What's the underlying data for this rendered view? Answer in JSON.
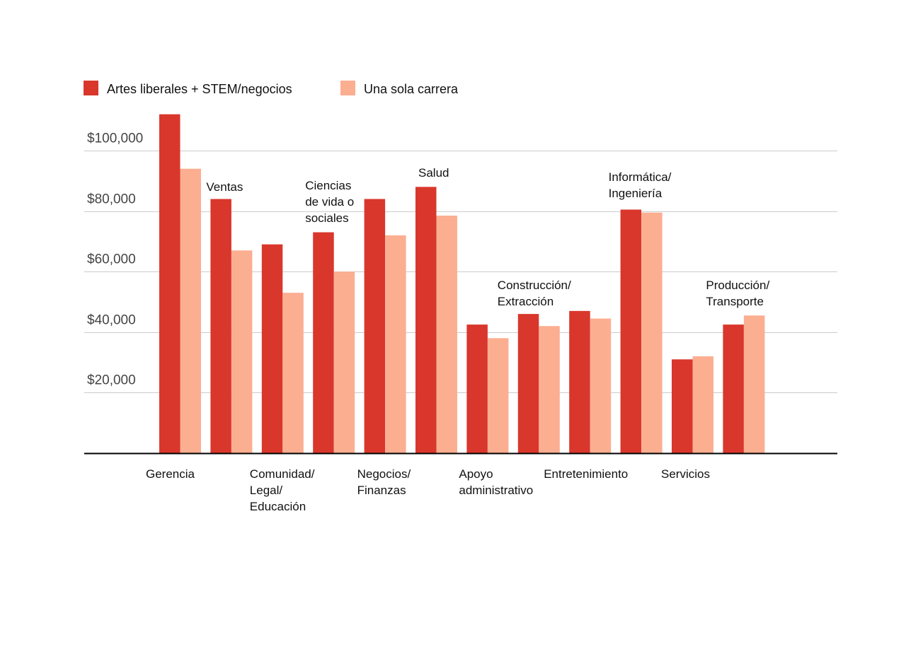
{
  "chart_data": {
    "type": "bar",
    "title": "",
    "xlabel": "",
    "ylabel": "",
    "ylim": [
      0,
      112000
    ],
    "grid": true,
    "legend_position": "top-left",
    "y_ticks": [
      {
        "value": 20000,
        "label": "$20,000"
      },
      {
        "value": 40000,
        "label": "$40,000"
      },
      {
        "value": 60000,
        "label": "$60,000"
      },
      {
        "value": 80000,
        "label": "$80,000"
      },
      {
        "value": 100000,
        "label": "$100,000"
      }
    ],
    "categories": [
      {
        "lines": [
          "Gerencia"
        ],
        "placement": "below"
      },
      {
        "lines": [
          "Ventas"
        ],
        "placement": "above"
      },
      {
        "lines": [
          "Comunidad/",
          "Legal/",
          "Educación"
        ],
        "placement": "below"
      },
      {
        "lines": [
          "Ciencias",
          "de vida o",
          "sociales"
        ],
        "placement": "above"
      },
      {
        "lines": [
          "Negocios/",
          "Finanzas"
        ],
        "placement": "below"
      },
      {
        "lines": [
          "Salud"
        ],
        "placement": "above"
      },
      {
        "lines": [
          "Apoyo",
          "administrativo"
        ],
        "placement": "below"
      },
      {
        "lines": [
          "Construcción/",
          "Extracción"
        ],
        "placement": "above"
      },
      {
        "lines": [
          "Entretenimiento"
        ],
        "placement": "below"
      },
      {
        "lines": [
          "Informática/",
          "Ingeniería"
        ],
        "placement": "above"
      },
      {
        "lines": [
          "Servicios"
        ],
        "placement": "below"
      },
      {
        "lines": [
          "Producción/",
          "Transporte"
        ],
        "placement": "above"
      }
    ],
    "series": [
      {
        "name": "Artes liberales + STEM/negocios",
        "color": "#d9372c",
        "values": [
          112000,
          84000,
          69000,
          73000,
          84000,
          88000,
          42500,
          46000,
          47000,
          80500,
          31000,
          42500
        ]
      },
      {
        "name": "Una sola carrera",
        "color": "#fcae91",
        "values": [
          94000,
          67000,
          53000,
          60000,
          72000,
          78500,
          38000,
          42000,
          44500,
          79500,
          32000,
          45500
        ]
      }
    ]
  }
}
